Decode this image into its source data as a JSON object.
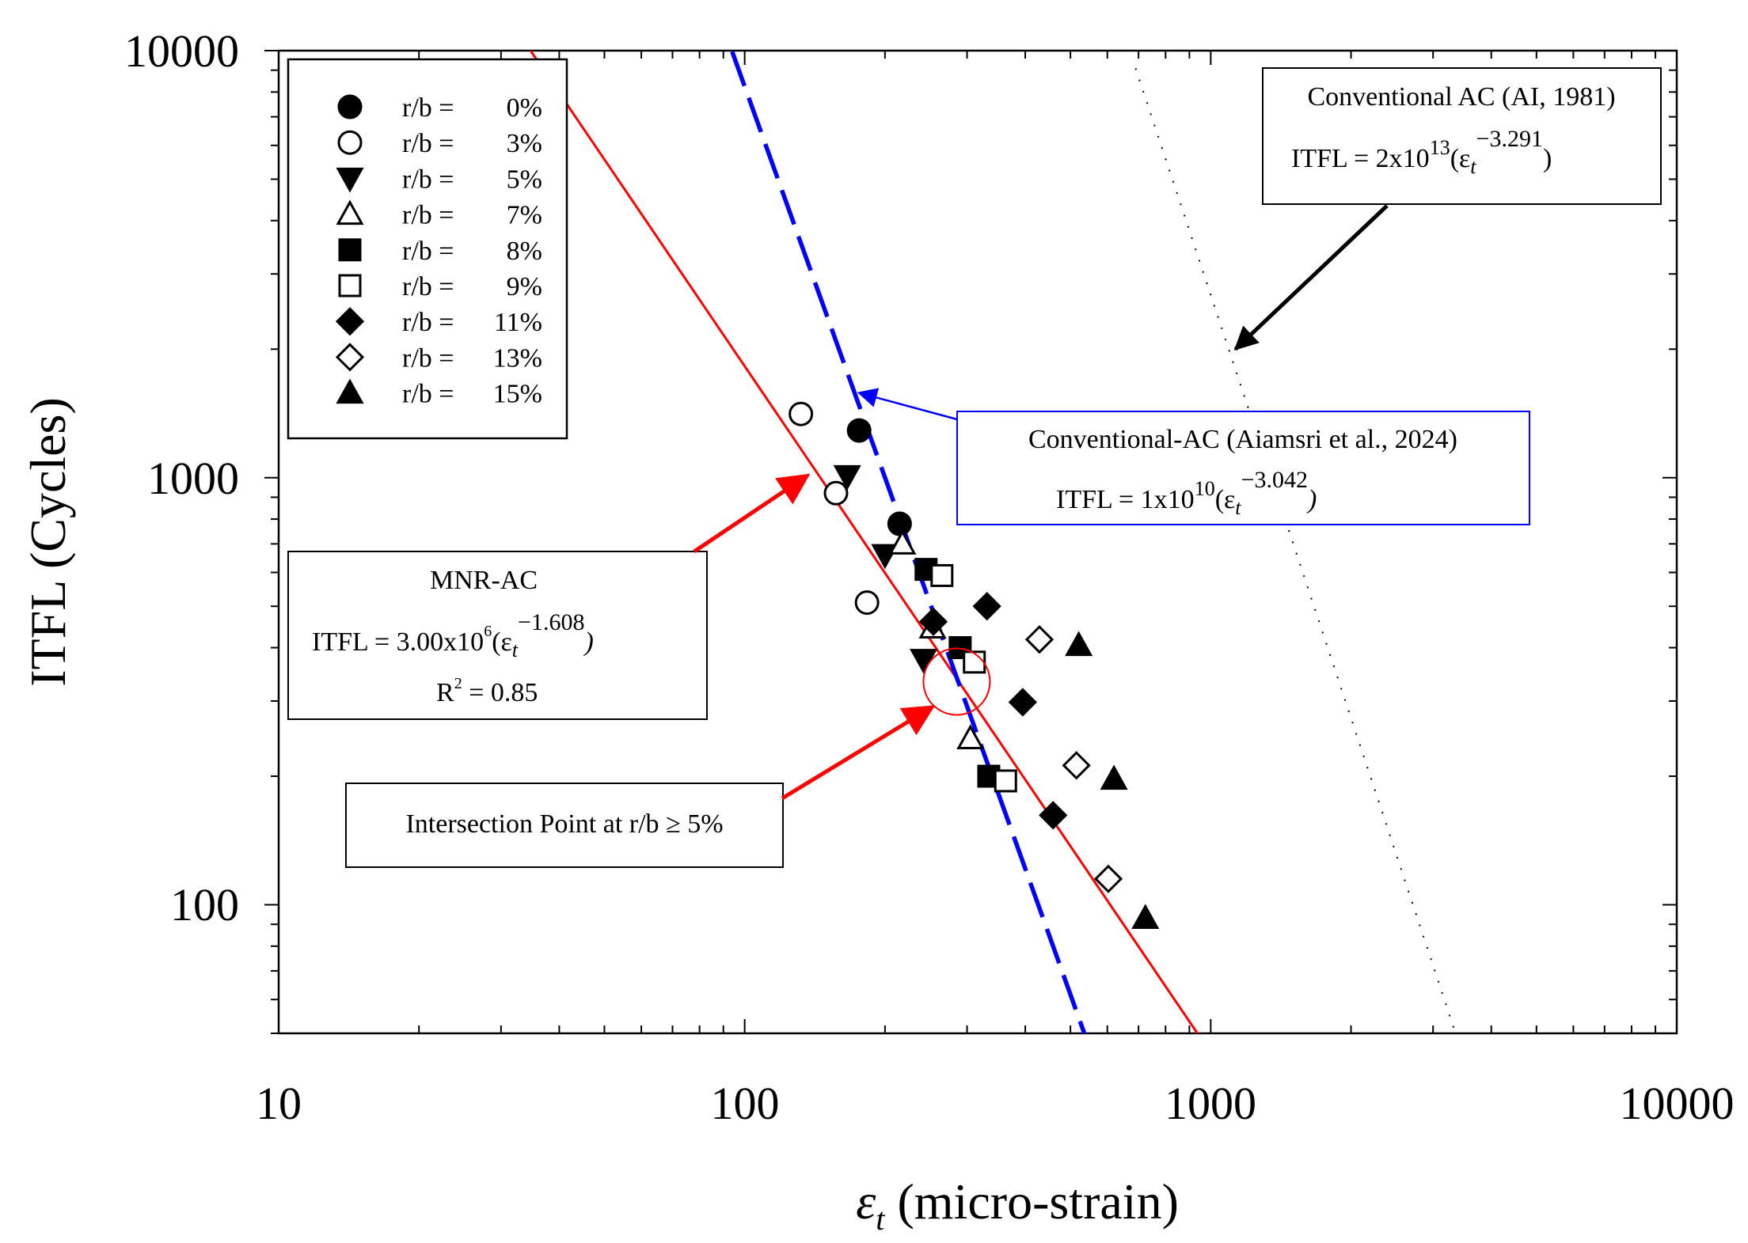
{
  "chart_data": {
    "type": "scatter",
    "title": "",
    "xlabel_symbol": "ε",
    "xlabel_sub": "t",
    "xlabel_rest": " (micro-strain)",
    "ylabel": "ITFL (Cycles)",
    "xscale": "log",
    "yscale": "log",
    "xlim": [
      10,
      10000
    ],
    "ylim": [
      50,
      10000
    ],
    "xticks": [
      10,
      100,
      1000,
      10000
    ],
    "xtick_labels": [
      "10",
      "100",
      "1000",
      "10000"
    ],
    "yticks": [
      100,
      1000,
      10000
    ],
    "ytick_labels": [
      "100",
      "1000",
      "10000"
    ],
    "legend_position": "top-left",
    "legend_prefix": "r/b =",
    "series": [
      {
        "name": "0%",
        "marker": "circle",
        "filled": true,
        "points": [
          [
            176,
            1290
          ],
          [
            215,
            780
          ]
        ]
      },
      {
        "name": "3%",
        "marker": "circle",
        "filled": false,
        "points": [
          [
            132,
            1410
          ],
          [
            157,
            920
          ],
          [
            183,
            510
          ]
        ]
      },
      {
        "name": "5%",
        "marker": "triangle-down",
        "filled": true,
        "points": [
          [
            166,
            1010
          ],
          [
            200,
            660
          ],
          [
            242,
            375
          ]
        ]
      },
      {
        "name": "7%",
        "marker": "triangle-up",
        "filled": false,
        "points": [
          [
            218,
            700
          ],
          [
            253,
            445
          ],
          [
            305,
            245
          ]
        ]
      },
      {
        "name": "8%",
        "marker": "square",
        "filled": true,
        "points": [
          [
            245,
            610
          ],
          [
            290,
            400
          ],
          [
            334,
            200
          ]
        ]
      },
      {
        "name": "9%",
        "marker": "square",
        "filled": false,
        "points": [
          [
            265,
            590
          ],
          [
            311,
            370
          ],
          [
            363,
            195
          ]
        ]
      },
      {
        "name": "11%",
        "marker": "diamond",
        "filled": true,
        "points": [
          [
            254,
            460
          ],
          [
            331,
            500
          ],
          [
            395,
            298
          ],
          [
            459,
            162
          ]
        ]
      },
      {
        "name": "13%",
        "marker": "diamond",
        "filled": false,
        "points": [
          [
            429,
            418
          ],
          [
            515,
            212
          ],
          [
            603,
            115
          ]
        ]
      },
      {
        "name": "15%",
        "marker": "triangle-up",
        "filled": true,
        "points": [
          [
            521,
            405
          ],
          [
            620,
            197
          ],
          [
            724,
            93
          ]
        ]
      }
    ],
    "lines": [
      {
        "name": "MNR-AC",
        "equation": "ITFL = 3.00x10^6(εt^-1.608)",
        "coef": 3000000,
        "exp": -1.608,
        "color": "#ff0000",
        "style": "solid",
        "x_from": 34,
        "x_to": 940
      },
      {
        "name": "Conventional-AC (Aiamsri et al., 2024)",
        "equation": "ITFL = 1x10^10(εt^-3.042)",
        "coef": 10000000000,
        "exp": -3.042,
        "color": "#0000ff",
        "style": "dashed",
        "x_from": 94,
        "x_to": 540
      },
      {
        "name": "Conventional AC (AI, 1981)",
        "equation": "ITFL = 2x10^13(εt^-3.291)",
        "coef": 20000000000000,
        "exp": -3.291,
        "color": "#000000",
        "style": "dotted",
        "x_from": 690,
        "x_to": 3430
      }
    ],
    "annotations": {
      "ai": {
        "title": "Conventional AC (AI, 1981)",
        "eq_left": "ITFL = 2x10",
        "eq_sup": "13",
        "eq_open": "(ε",
        "eq_sub": "t",
        "eq_sup2": "−3.291",
        "eq_close": ")",
        "arrow_to": [
          1130,
          2000
        ]
      },
      "aiamsri": {
        "title": "Conventional-AC (Aiamsri et al., 2024)",
        "eq_left": "ITFL = 1x10",
        "eq_sup": "10",
        "eq_open": "(ε",
        "eq_sub": "t",
        "eq_sup2": "−3.042",
        "eq_close": ")",
        "arrow_to": [
          176,
          1580
        ]
      },
      "mnr": {
        "title": "MNR-AC",
        "eq_left": "ITFL = 3.00x10",
        "eq_sup": "6",
        "eq_open": "(ε",
        "eq_sub": "t",
        "eq_sup2": "−1.608",
        "eq_close": ")",
        "r2_left": "R",
        "r2_sup": "2",
        "r2_right": " = 0.85",
        "arrow_to": [
          136,
          1010
        ]
      },
      "intersection": {
        "label": "Intersection Point at r/b ≥ 5%",
        "point": [
          285,
          333
        ],
        "arrow_to": [
          252,
          290
        ]
      }
    }
  }
}
